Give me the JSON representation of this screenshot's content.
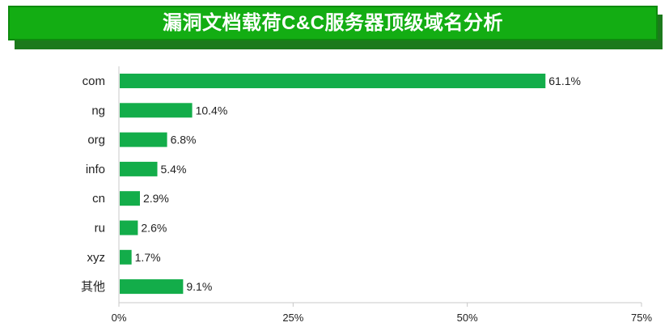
{
  "title": "漏洞文档载荷C&C服务器顶级域名分析",
  "colors": {
    "bar": "#13ad4a",
    "banner": "#13ad13",
    "banner_shadow": "#1c7a1c"
  },
  "chart_data": {
    "type": "bar",
    "orientation": "horizontal",
    "title": "漏洞文档载荷C&C服务器顶级域名分析",
    "categories": [
      "com",
      "ng",
      "org",
      "info",
      "cn",
      "ru",
      "xyz",
      "其他"
    ],
    "values": [
      61.1,
      10.4,
      6.8,
      5.4,
      2.9,
      2.6,
      1.7,
      9.1
    ],
    "value_labels": [
      "61.1%",
      "10.4%",
      "6.8%",
      "5.4%",
      "2.9%",
      "2.6%",
      "1.7%",
      "9.1%"
    ],
    "xlim": [
      0,
      75
    ],
    "xticks": [
      0,
      25,
      50,
      75
    ],
    "xtick_labels": [
      "0%",
      "25%",
      "50%",
      "75%"
    ],
    "grid": false,
    "legend": "none"
  }
}
